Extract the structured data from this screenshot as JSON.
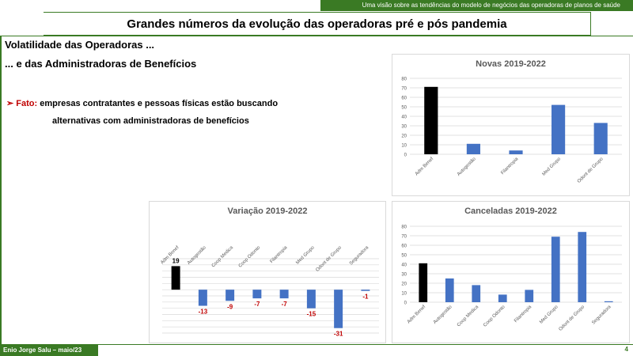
{
  "header": {
    "banner": "Uma visão sobre as tendências  do modelo de negócios das operadoras de planos de saúde",
    "title": "Grandes números da evolução das operadoras pré e pós pandemia"
  },
  "content": {
    "heading1": "Volatilidade das Operadoras ...",
    "heading2": "... e das Administradoras de Benefícios",
    "fato_arrow": "➢",
    "fato_label": "Fato:",
    "fato_text1": "empresas contratantes e pessoas  físicas  estão buscando",
    "fato_text2": "alternativas com administradoras  de benefícios"
  },
  "footer": {
    "author": "Enio  Jorge Salu – maio/23",
    "page": "4"
  },
  "colors": {
    "brand_green": "#3a7a24",
    "bar_blue": "#4472c4",
    "bar_black": "#000000",
    "neg_label": "#c00000"
  },
  "chart_data": [
    {
      "id": "novas",
      "type": "bar",
      "title": "Novas 2019-2022",
      "categories": [
        "Adm Benef",
        "Autogestão",
        "Filantropia",
        "Med Grupo",
        "Odont de Grupo"
      ],
      "values": [
        71,
        11,
        4,
        52,
        33
      ],
      "ylim": [
        0,
        80
      ],
      "yticks": [
        0,
        10,
        20,
        30,
        40,
        50,
        60,
        70,
        80
      ],
      "grid": true,
      "highlight_first": true
    },
    {
      "id": "variacao",
      "type": "bar",
      "title": "Variação 2019-2022",
      "categories": [
        "Adm Benef",
        "Autogestão",
        "Coop Medica",
        "Coop Odonto",
        "Filantropia",
        "Med Grupo",
        "Odont de Grupo",
        "Seguradora"
      ],
      "values": [
        19,
        -13,
        -9,
        -7,
        -7,
        -15,
        -31,
        -1
      ],
      "data_labels": [
        "19",
        "-13",
        "-9",
        "-7",
        "-7",
        "-15",
        "-31",
        "-1"
      ],
      "ylim": [
        -35,
        25
      ],
      "grid": true,
      "highlight_first": true
    },
    {
      "id": "canceladas",
      "type": "bar",
      "title": "Canceladas 2019-2022",
      "categories": [
        "Adm Benef",
        "Autogestão",
        "Coop Medica",
        "Coop Odonto",
        "Filantropia",
        "Med Grupo",
        "Odont de Grupo",
        "Seguradora"
      ],
      "values": [
        41,
        25,
        18,
        8,
        13,
        69,
        74,
        1
      ],
      "ylim": [
        0,
        80
      ],
      "yticks": [
        0,
        10,
        20,
        30,
        40,
        50,
        60,
        70,
        80
      ],
      "grid": true,
      "highlight_first": true
    }
  ]
}
